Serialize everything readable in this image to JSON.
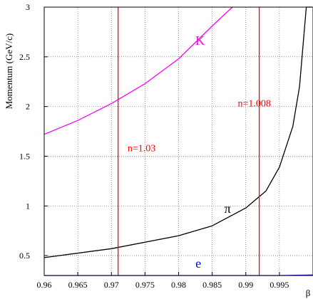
{
  "chart_data": {
    "type": "line",
    "xlabel": "β",
    "ylabel": "Momentum (GeV/c)",
    "xlim": [
      0.96,
      1.0
    ],
    "ylim": [
      0.3,
      3.0
    ],
    "grid": true,
    "x_ticks": [
      "0.96",
      "0.965",
      "0.97",
      "0.975",
      "0.98",
      "0.985",
      "0.99",
      "0.995"
    ],
    "y_ticks": [
      "0.5",
      "1",
      "1.5",
      "2",
      "2.5",
      "3"
    ],
    "x_tick_values": [
      0.96,
      0.965,
      0.97,
      0.975,
      0.98,
      0.985,
      0.99,
      0.995
    ],
    "y_tick_values": [
      0.5,
      1,
      1.5,
      2,
      2.5,
      3
    ],
    "series": [
      {
        "name": "K",
        "color": "#ff00ff",
        "x": [
          0.96,
          0.965,
          0.97,
          0.975,
          0.98,
          0.985,
          0.988
        ],
        "y": [
          1.72,
          1.86,
          2.03,
          2.23,
          2.48,
          2.81,
          3.0
        ]
      },
      {
        "name": "π",
        "color": "#000000",
        "x": [
          0.96,
          0.97,
          0.98,
          0.985,
          0.99,
          0.993,
          0.995,
          0.997,
          0.998,
          0.999,
          0.9995,
          0.9998
        ],
        "y": [
          0.48,
          0.57,
          0.7,
          0.8,
          0.98,
          1.15,
          1.39,
          1.8,
          2.2,
          3.0,
          3.0,
          3.0
        ]
      },
      {
        "name": "e",
        "color": "#0000ff",
        "x": [
          0.96,
          0.985,
          0.99,
          0.995,
          1.0
        ],
        "y": [
          0.3,
          0.3,
          0.3,
          0.3,
          0.305
        ]
      }
    ],
    "threshold_lines": [
      {
        "label": "n=1.03",
        "x": 0.971,
        "color": "#ff0000"
      },
      {
        "label": "n=1.008",
        "x": 0.992,
        "color": "#ff0000"
      }
    ],
    "labels": [
      {
        "text": "K",
        "x": 0.9825,
        "y": 2.62,
        "color": "#ff00ff"
      },
      {
        "text": "π",
        "x": 0.9868,
        "y": 0.93,
        "color": "#000000"
      },
      {
        "text": "e",
        "x": 0.9825,
        "y": 0.38,
        "color": "#0000ff"
      },
      {
        "text": "n=1.03",
        "x": 0.9724,
        "y": 1.55,
        "color": "#ff0000"
      },
      {
        "text": "n=1.008",
        "x": 0.9888,
        "y": 2.0,
        "color": "#ff0000"
      }
    ]
  }
}
